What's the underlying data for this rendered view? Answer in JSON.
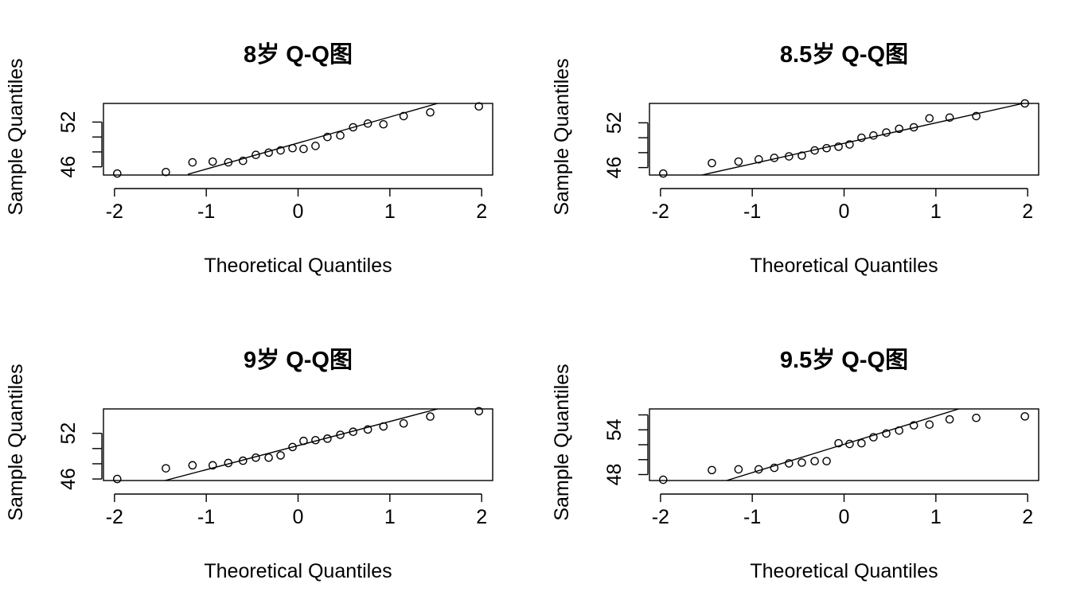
{
  "chart_data": [
    {
      "type": "scatter",
      "title": "8岁 Q-Q图",
      "xlabel": "Theoretical Quantiles",
      "ylabel": "Sample Quantiles",
      "xticks": [
        -2,
        -1,
        0,
        1,
        2
      ],
      "yticks": [
        46,
        48,
        50,
        52
      ],
      "yticklabels": [
        "46",
        "",
        "",
        "52"
      ],
      "xlim": [
        -2.12,
        2.12
      ],
      "ylim": [
        44.9,
        54.5
      ],
      "qqline": [
        [
          -1.2,
          45.0
        ],
        [
          1.52,
          54.5
        ]
      ],
      "points": [
        {
          "x": -1.97,
          "y": 45.1
        },
        {
          "x": -1.44,
          "y": 45.3
        },
        {
          "x": -1.15,
          "y": 46.6
        },
        {
          "x": -0.93,
          "y": 46.7
        },
        {
          "x": -0.76,
          "y": 46.6
        },
        {
          "x": -0.6,
          "y": 46.8
        },
        {
          "x": -0.46,
          "y": 47.6
        },
        {
          "x": -0.32,
          "y": 47.9
        },
        {
          "x": -0.19,
          "y": 48.2
        },
        {
          "x": -0.06,
          "y": 48.5
        },
        {
          "x": 0.06,
          "y": 48.4
        },
        {
          "x": 0.19,
          "y": 48.8
        },
        {
          "x": 0.32,
          "y": 50.0
        },
        {
          "x": 0.46,
          "y": 50.2
        },
        {
          "x": 0.6,
          "y": 51.3
        },
        {
          "x": 0.76,
          "y": 51.8
        },
        {
          "x": 0.93,
          "y": 51.7
        },
        {
          "x": 1.15,
          "y": 52.8
        },
        {
          "x": 1.44,
          "y": 53.3
        },
        {
          "x": 1.97,
          "y": 54.1
        }
      ]
    },
    {
      "type": "scatter",
      "title": "8.5岁 Q-Q图",
      "xlabel": "Theoretical Quantiles",
      "ylabel": "Sample Quantiles",
      "xticks": [
        -2,
        -1,
        0,
        1,
        2
      ],
      "yticks": [
        46,
        48,
        50,
        52
      ],
      "yticklabels": [
        "46",
        "",
        "",
        "52"
      ],
      "xlim": [
        -2.12,
        2.12
      ],
      "ylim": [
        45.0,
        54.6
      ],
      "qqline": [
        [
          -1.55,
          45.0
        ],
        [
          1.95,
          54.6
        ]
      ],
      "points": [
        {
          "x": -1.97,
          "y": 45.2
        },
        {
          "x": -1.44,
          "y": 46.6
        },
        {
          "x": -1.15,
          "y": 46.8
        },
        {
          "x": -0.93,
          "y": 47.1
        },
        {
          "x": -0.76,
          "y": 47.3
        },
        {
          "x": -0.6,
          "y": 47.5
        },
        {
          "x": -0.46,
          "y": 47.6
        },
        {
          "x": -0.32,
          "y": 48.3
        },
        {
          "x": -0.19,
          "y": 48.6
        },
        {
          "x": -0.06,
          "y": 48.8
        },
        {
          "x": 0.06,
          "y": 49.1
        },
        {
          "x": 0.19,
          "y": 50.0
        },
        {
          "x": 0.32,
          "y": 50.3
        },
        {
          "x": 0.46,
          "y": 50.7
        },
        {
          "x": 0.6,
          "y": 51.2
        },
        {
          "x": 0.76,
          "y": 51.4
        },
        {
          "x": 0.93,
          "y": 52.6
        },
        {
          "x": 1.15,
          "y": 52.7
        },
        {
          "x": 1.44,
          "y": 52.9
        },
        {
          "x": 1.97,
          "y": 54.6
        }
      ]
    },
    {
      "type": "scatter",
      "title": "9岁 Q-Q图",
      "xlabel": "Theoretical Quantiles",
      "ylabel": "Sample Quantiles",
      "xticks": [
        -2,
        -1,
        0,
        1,
        2
      ],
      "yticks": [
        46,
        48,
        50,
        52
      ],
      "yticklabels": [
        "46",
        "",
        "",
        "52"
      ],
      "xlim": [
        -2.12,
        2.12
      ],
      "ylim": [
        45.8,
        55.2
      ],
      "qqline": [
        [
          -1.45,
          45.8
        ],
        [
          1.52,
          55.2
        ]
      ],
      "points": [
        {
          "x": -1.97,
          "y": 46.0
        },
        {
          "x": -1.44,
          "y": 47.4
        },
        {
          "x": -1.15,
          "y": 47.8
        },
        {
          "x": -0.93,
          "y": 47.8
        },
        {
          "x": -0.76,
          "y": 48.1
        },
        {
          "x": -0.6,
          "y": 48.4
        },
        {
          "x": -0.46,
          "y": 48.8
        },
        {
          "x": -0.32,
          "y": 48.8
        },
        {
          "x": -0.19,
          "y": 49.1
        },
        {
          "x": -0.06,
          "y": 50.2
        },
        {
          "x": 0.06,
          "y": 51.0
        },
        {
          "x": 0.19,
          "y": 51.1
        },
        {
          "x": 0.32,
          "y": 51.3
        },
        {
          "x": 0.46,
          "y": 51.8
        },
        {
          "x": 0.6,
          "y": 52.2
        },
        {
          "x": 0.76,
          "y": 52.5
        },
        {
          "x": 0.93,
          "y": 52.9
        },
        {
          "x": 1.15,
          "y": 53.3
        },
        {
          "x": 1.44,
          "y": 54.2
        },
        {
          "x": 1.97,
          "y": 54.9
        }
      ]
    },
    {
      "type": "scatter",
      "title": "9.5岁 Q-Q图",
      "xlabel": "Theoretical Quantiles",
      "ylabel": "Sample Quantiles",
      "xticks": [
        -2,
        -1,
        0,
        1,
        2
      ],
      "yticks": [
        48,
        50,
        52,
        54,
        56
      ],
      "yticklabels": [
        "48",
        "",
        "",
        "54",
        ""
      ],
      "xlim": [
        -2.12,
        2.12
      ],
      "ylim": [
        47.2,
        56.8
      ],
      "qqline": [
        [
          -1.28,
          47.2
        ],
        [
          1.25,
          56.8
        ]
      ],
      "points": [
        {
          "x": -1.97,
          "y": 47.3
        },
        {
          "x": -1.44,
          "y": 48.6
        },
        {
          "x": -1.15,
          "y": 48.7
        },
        {
          "x": -0.93,
          "y": 48.7
        },
        {
          "x": -0.76,
          "y": 48.9
        },
        {
          "x": -0.6,
          "y": 49.5
        },
        {
          "x": -0.46,
          "y": 49.6
        },
        {
          "x": -0.32,
          "y": 49.8
        },
        {
          "x": -0.19,
          "y": 49.8
        },
        {
          "x": -0.06,
          "y": 52.2
        },
        {
          "x": 0.06,
          "y": 52.1
        },
        {
          "x": 0.19,
          "y": 52.2
        },
        {
          "x": 0.32,
          "y": 53.0
        },
        {
          "x": 0.46,
          "y": 53.5
        },
        {
          "x": 0.6,
          "y": 53.9
        },
        {
          "x": 0.76,
          "y": 54.6
        },
        {
          "x": 0.93,
          "y": 54.7
        },
        {
          "x": 1.15,
          "y": 55.4
        },
        {
          "x": 1.44,
          "y": 55.6
        },
        {
          "x": 1.97,
          "y": 55.8
        }
      ]
    }
  ]
}
